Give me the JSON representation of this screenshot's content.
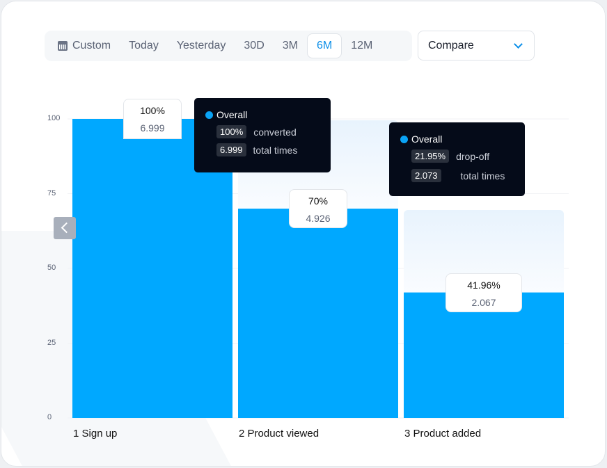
{
  "toolbar": {
    "ranges": [
      "Custom",
      "Today",
      "Yesterday",
      "30D",
      "3M",
      "6M",
      "12M"
    ],
    "active": "6M",
    "compare_label": "Compare"
  },
  "colors": {
    "bar": "#00a8ff",
    "accent": "#0a8ee8",
    "tooltip_bg": "#050b19"
  },
  "chart_data": {
    "type": "bar",
    "categories": [
      "1 Sign up",
      "2 Product viewed",
      "3 Product added"
    ],
    "values": [
      100,
      70,
      41.96
    ],
    "value_labels": [
      "100%",
      "70%",
      "41.96%"
    ],
    "counts": [
      "6.999",
      "4.926",
      "2.067"
    ],
    "ylim": [
      0,
      100
    ],
    "yticks": [
      "0",
      "25",
      "50",
      "75",
      "100"
    ],
    "grid": true,
    "tooltips": [
      {
        "title": "Overall",
        "rows": [
          {
            "badge": "100%",
            "text": "converted"
          },
          {
            "badge": "6.999",
            "text": "total times"
          }
        ]
      },
      {
        "title": "Overall",
        "rows": [
          {
            "badge": "21.95%",
            "text": "drop-off"
          },
          {
            "badge": "2.073",
            "text": "total times"
          }
        ]
      }
    ]
  }
}
